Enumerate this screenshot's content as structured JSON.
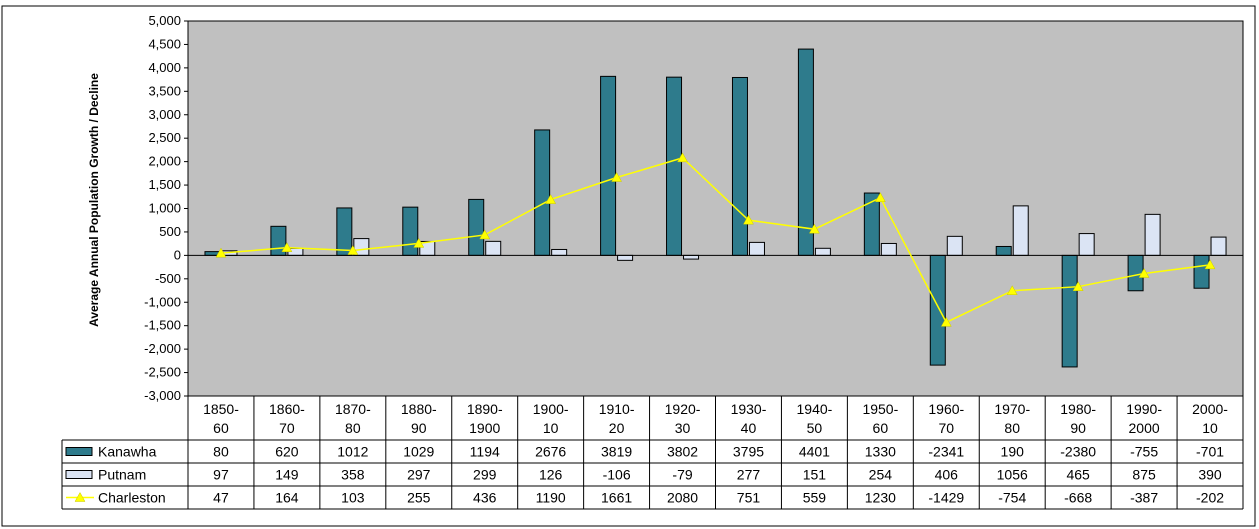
{
  "chart_data": {
    "type": "bar",
    "title": "",
    "xlabel": "",
    "ylabel": "Average Annual Population Growth / Decline",
    "ylim": [
      -3000,
      5000
    ],
    "ytick_step": 500,
    "grid": false,
    "legend": "left, inside data table",
    "categories": [
      [
        "1850-",
        "60"
      ],
      [
        "1860-",
        "70"
      ],
      [
        "1870-",
        "80"
      ],
      [
        "1880-",
        "90"
      ],
      [
        "1890-",
        "1900"
      ],
      [
        "1900-",
        "10"
      ],
      [
        "1910-",
        "20"
      ],
      [
        "1920-",
        "30"
      ],
      [
        "1930-",
        "40"
      ],
      [
        "1940-",
        "50"
      ],
      [
        "1950-",
        "60"
      ],
      [
        "1960-",
        "70"
      ],
      [
        "1970-",
        "80"
      ],
      [
        "1980-",
        "90"
      ],
      [
        "1990-",
        "2000"
      ],
      [
        "2000-",
        "10"
      ]
    ],
    "series": [
      {
        "name": "Kanawha",
        "kind": "bar",
        "color": "#2e7b8c",
        "values": [
          80,
          620,
          1012,
          1029,
          1194,
          2676,
          3819,
          3802,
          3795,
          4401,
          1330,
          -2341,
          190,
          -2380,
          -755,
          -701
        ]
      },
      {
        "name": "Putnam",
        "kind": "bar",
        "color": "#dbe4f4",
        "values": [
          97,
          149,
          358,
          297,
          299,
          126,
          -106,
          -79,
          277,
          151,
          254,
          406,
          1056,
          465,
          875,
          390
        ]
      },
      {
        "name": "Charleston",
        "kind": "line",
        "color": "#ffff00",
        "values": [
          47,
          164,
          103,
          255,
          436,
          1190,
          1661,
          2080,
          751,
          559,
          1230,
          -1429,
          -754,
          -668,
          -387,
          -202
        ]
      }
    ]
  },
  "colors": {
    "plot_background": "#c0c0c0",
    "kanawha": "#2e7b8c",
    "putnam": "#dbe4f4",
    "charleston": "#ffff00"
  }
}
